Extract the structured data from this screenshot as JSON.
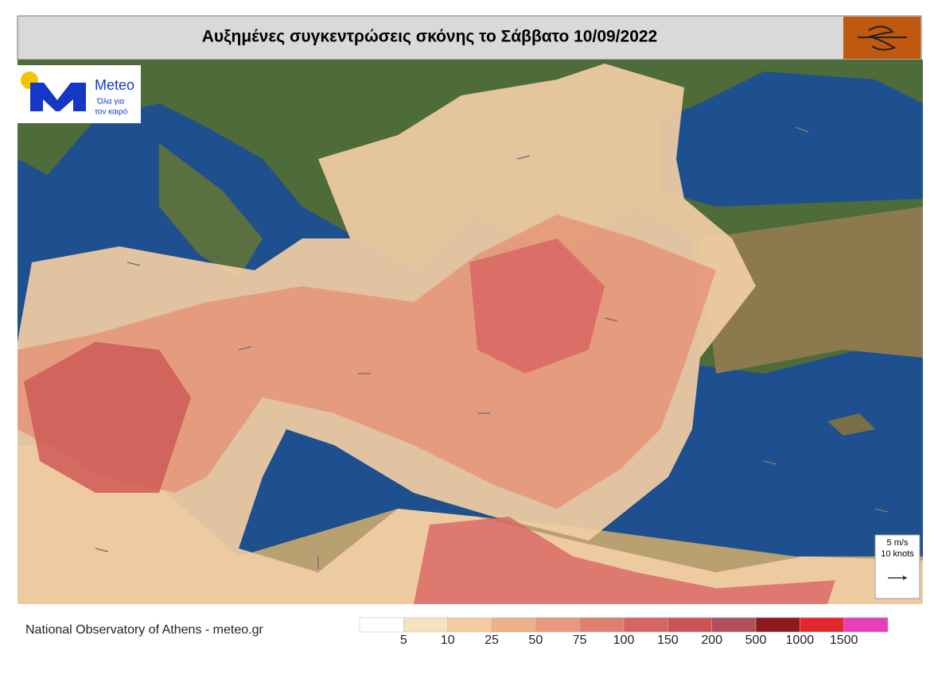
{
  "header": {
    "title": "Αυξημένες συγκεντρώσεις σκόνης το Σάββατο 10/09/2022"
  },
  "logo": {
    "name": "Meteo",
    "tagline_1": "Όλα για",
    "tagline_2": "τον καιρό"
  },
  "wind_key": {
    "speed": "5 m/s",
    "knots": "10 knots"
  },
  "footer": {
    "source": "National Observatory of Athens - meteo.gr"
  },
  "colorbar": {
    "colors": [
      "#ffffff",
      "#f5e3bf",
      "#f3cca0",
      "#eeb088",
      "#e8987c",
      "#df7f70",
      "#d86462",
      "#cd5256",
      "#b14f5c",
      "#8e1a1e",
      "#e2262c",
      "#e83fb8"
    ],
    "labels": [
      "5",
      "10",
      "25",
      "50",
      "75",
      "100",
      "150",
      "200",
      "500",
      "1000",
      "1500"
    ]
  }
}
